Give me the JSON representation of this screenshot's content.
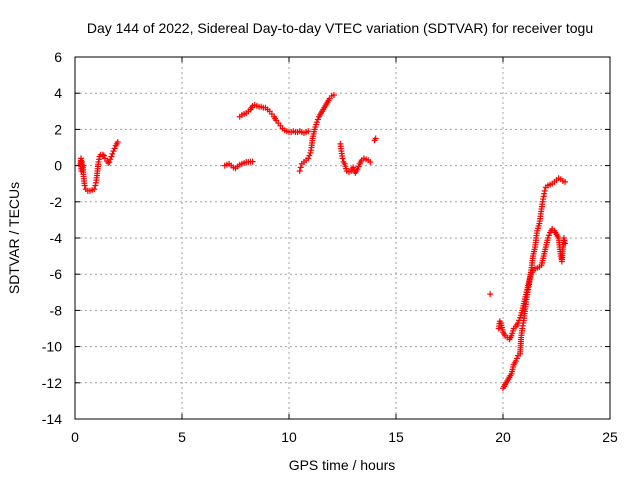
{
  "chart_data": {
    "type": "scatter",
    "title": "Day 144 of 2022, Sidereal Day-to-day VTEC variation (SDTVAR) for receiver togu",
    "xlabel": "GPS time / hours",
    "ylabel": "SDTVAR / TECUs",
    "xlim": [
      0,
      25
    ],
    "ylim": [
      -14,
      6
    ],
    "xticks": [
      "0",
      "5",
      "10",
      "15",
      "20",
      "25"
    ],
    "yticks": [
      "-14",
      "-12",
      "-10",
      "-8",
      "-6",
      "-4",
      "-2",
      "0",
      "2",
      "4",
      "6"
    ],
    "grid": true,
    "marker": "plus",
    "color": "#ff0000",
    "segments": [
      [
        [
          0.25,
          0.1
        ],
        [
          0.28,
          0.4
        ],
        [
          0.3,
          -0.3
        ],
        [
          0.33,
          0.2
        ],
        [
          0.36,
          0.0
        ],
        [
          0.4,
          -0.6
        ],
        [
          0.45,
          -1.1
        ],
        [
          0.5,
          -1.3
        ],
        [
          0.6,
          -1.4
        ],
        [
          0.7,
          -1.4
        ],
        [
          0.8,
          -1.35
        ],
        [
          0.9,
          -1.3
        ],
        [
          0.95,
          -1.1
        ],
        [
          1.0,
          -0.8
        ],
        [
          1.05,
          -0.3
        ],
        [
          1.1,
          0.2
        ],
        [
          1.15,
          0.5
        ],
        [
          1.2,
          0.6
        ],
        [
          1.3,
          0.6
        ],
        [
          1.35,
          0.55
        ],
        [
          1.4,
          0.4
        ],
        [
          1.5,
          0.25
        ],
        [
          1.55,
          0.15
        ],
        [
          1.6,
          0.2
        ],
        [
          1.7,
          0.5
        ],
        [
          1.8,
          0.8
        ],
        [
          1.9,
          1.1
        ],
        [
          2.0,
          1.3
        ]
      ],
      [
        [
          7.0,
          0.0
        ],
        [
          7.1,
          0.05
        ],
        [
          7.2,
          0.1
        ],
        [
          7.3,
          0.0
        ],
        [
          7.4,
          -0.1
        ],
        [
          7.5,
          -0.15
        ],
        [
          7.6,
          -0.05
        ],
        [
          7.7,
          0.05
        ],
        [
          7.8,
          0.1
        ],
        [
          7.9,
          0.15
        ],
        [
          8.0,
          0.2
        ],
        [
          8.1,
          0.2
        ],
        [
          8.2,
          0.22
        ],
        [
          8.3,
          0.22
        ]
      ],
      [
        [
          7.7,
          2.7
        ],
        [
          7.8,
          2.8
        ],
        [
          7.9,
          2.85
        ],
        [
          8.0,
          2.9
        ],
        [
          8.1,
          3.0
        ],
        [
          8.2,
          3.1
        ],
        [
          8.3,
          3.3
        ],
        [
          8.4,
          3.35
        ],
        [
          8.5,
          3.3
        ],
        [
          8.6,
          3.25
        ],
        [
          8.7,
          3.25
        ],
        [
          8.8,
          3.2
        ],
        [
          8.9,
          3.2
        ],
        [
          9.0,
          3.1
        ],
        [
          9.1,
          3.0
        ],
        [
          9.2,
          2.85
        ],
        [
          9.3,
          2.7
        ],
        [
          9.4,
          2.5
        ],
        [
          9.5,
          2.35
        ],
        [
          9.6,
          2.2
        ],
        [
          9.7,
          2.05
        ],
        [
          9.8,
          1.95
        ],
        [
          9.9,
          1.9
        ],
        [
          10.0,
          1.85
        ],
        [
          10.1,
          1.85
        ],
        [
          10.2,
          1.9
        ],
        [
          10.3,
          1.85
        ],
        [
          10.4,
          1.85
        ],
        [
          10.5,
          1.9
        ],
        [
          10.6,
          1.85
        ],
        [
          10.7,
          1.8
        ],
        [
          10.8,
          1.85
        ],
        [
          10.9,
          1.9
        ]
      ],
      [
        [
          10.5,
          -0.3
        ],
        [
          10.55,
          -0.1
        ],
        [
          10.6,
          0.1
        ],
        [
          10.7,
          0.2
        ],
        [
          10.8,
          0.3
        ],
        [
          10.9,
          0.4
        ],
        [
          11.0,
          0.7
        ],
        [
          11.05,
          1.0
        ],
        [
          11.1,
          1.5
        ],
        [
          11.2,
          2.0
        ],
        [
          11.3,
          2.4
        ],
        [
          11.4,
          2.7
        ],
        [
          11.5,
          2.9
        ],
        [
          11.6,
          3.1
        ],
        [
          11.7,
          3.3
        ],
        [
          11.8,
          3.5
        ],
        [
          11.9,
          3.7
        ],
        [
          12.0,
          3.85
        ],
        [
          12.1,
          3.9
        ]
      ],
      [
        [
          12.4,
          1.2
        ],
        [
          12.45,
          0.8
        ],
        [
          12.5,
          0.4
        ],
        [
          12.55,
          0.2
        ],
        [
          12.6,
          0.1
        ],
        [
          12.7,
          -0.3
        ],
        [
          12.8,
          -0.35
        ],
        [
          12.9,
          -0.3
        ],
        [
          13.0,
          -0.1
        ],
        [
          13.05,
          -0.3
        ],
        [
          13.1,
          -0.4
        ],
        [
          13.2,
          -0.2
        ],
        [
          13.3,
          0.1
        ],
        [
          13.4,
          0.3
        ],
        [
          13.5,
          0.4
        ],
        [
          13.6,
          0.35
        ],
        [
          13.7,
          0.3
        ],
        [
          13.8,
          0.2
        ]
      ],
      [
        [
          14.0,
          1.4
        ],
        [
          14.05,
          1.5
        ]
      ],
      [
        [
          19.4,
          -7.1
        ]
      ],
      [
        [
          19.8,
          -9.0
        ],
        [
          19.85,
          -8.6
        ],
        [
          19.9,
          -8.7
        ],
        [
          20.0,
          -9.2
        ],
        [
          20.1,
          -9.4
        ],
        [
          20.2,
          -9.5
        ],
        [
          20.3,
          -9.6
        ],
        [
          20.4,
          -9.4
        ],
        [
          20.5,
          -9.0
        ],
        [
          20.6,
          -8.9
        ],
        [
          20.7,
          -8.7
        ],
        [
          20.8,
          -8.4
        ],
        [
          20.9,
          -8.0
        ],
        [
          21.0,
          -7.5
        ],
        [
          21.1,
          -7.0
        ],
        [
          21.2,
          -6.5
        ],
        [
          21.3,
          -6.0
        ],
        [
          21.4,
          -5.8
        ],
        [
          21.5,
          -5.7
        ],
        [
          21.6,
          -5.65
        ],
        [
          21.7,
          -5.6
        ],
        [
          21.8,
          -5.5
        ],
        [
          21.9,
          -5.0
        ],
        [
          22.0,
          -4.5
        ],
        [
          22.1,
          -4.0
        ],
        [
          22.2,
          -3.7
        ],
        [
          22.3,
          -3.5
        ],
        [
          22.4,
          -3.6
        ],
        [
          22.5,
          -3.8
        ],
        [
          22.6,
          -4.0
        ],
        [
          22.65,
          -4.5
        ],
        [
          22.7,
          -5.0
        ],
        [
          22.75,
          -5.3
        ],
        [
          22.8,
          -4.5
        ],
        [
          22.85,
          -4.0
        ],
        [
          22.9,
          -4.3
        ]
      ],
      [
        [
          20.0,
          -12.3
        ],
        [
          20.1,
          -12.1
        ],
        [
          20.2,
          -11.9
        ],
        [
          20.3,
          -11.7
        ],
        [
          20.4,
          -11.5
        ],
        [
          20.5,
          -11.0
        ],
        [
          20.6,
          -10.8
        ],
        [
          20.7,
          -10.5
        ],
        [
          20.8,
          -10.4
        ],
        [
          20.85,
          -9.5
        ],
        [
          20.9,
          -9.0
        ],
        [
          20.95,
          -8.7
        ],
        [
          21.0,
          -8.3
        ],
        [
          21.05,
          -7.8
        ],
        [
          21.1,
          -7.4
        ],
        [
          21.15,
          -7.0
        ],
        [
          21.2,
          -6.7
        ],
        [
          21.25,
          -6.3
        ],
        [
          21.3,
          -5.9
        ],
        [
          21.35,
          -5.5
        ],
        [
          21.4,
          -5.0
        ],
        [
          21.5,
          -4.5
        ],
        [
          21.55,
          -4.0
        ],
        [
          21.6,
          -3.6
        ],
        [
          21.7,
          -3.2
        ],
        [
          21.75,
          -2.8
        ],
        [
          21.8,
          -2.4
        ],
        [
          21.85,
          -2.0
        ],
        [
          21.9,
          -1.7
        ],
        [
          21.95,
          -1.4
        ],
        [
          22.0,
          -1.2
        ],
        [
          22.1,
          -1.1
        ],
        [
          22.2,
          -1.05
        ],
        [
          22.3,
          -1.0
        ],
        [
          22.4,
          -0.9
        ],
        [
          22.5,
          -0.8
        ],
        [
          22.6,
          -0.7
        ],
        [
          22.7,
          -0.75
        ],
        [
          22.8,
          -0.85
        ],
        [
          22.9,
          -0.9
        ]
      ]
    ]
  }
}
